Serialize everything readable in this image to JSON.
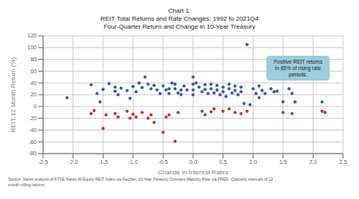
{
  "chart_data": {
    "type": "scatter",
    "title": "Chart 1:\nREIT Total Returns and Rate Changes: 1992 to 2021Q4\nFour-Quarter Return and Change in 10-Year Treasury",
    "xlabel": "Change in Interest Rates",
    "ylabel": "REIT 12 Month Return (%)",
    "source": "Source: Nareit analysis of FTSE Nareit All Equity REIT Index via FactSet. 10 Year Treasury Constant Maturity Rate via FRED. Quarterly intervals of 12\nmonth rolling returns.",
    "annotations": [
      {
        "text": "Positive REIT returns\nin 85% of rising rate\nperiods.",
        "x": 1.75,
        "y": 65,
        "color": "#93C6D6"
      }
    ],
    "xlim": [
      -2.5,
      2.5
    ],
    "ylim": [
      -80,
      120
    ],
    "xticks": [
      -2.5,
      {
        "value": -2.0,
        "label": "-2.0"
      },
      -1.5,
      {
        "value": -1.0,
        "label": "-1.0"
      },
      -0.5,
      {
        "value": 0.0,
        "label": "0.0"
      },
      0.5,
      {
        "value": 1.0,
        "label": "1.0"
      },
      1.5,
      {
        "value": 2.0,
        "label": "2.0"
      },
      2.5
    ],
    "yticks": [
      -80,
      -60,
      -40,
      -20,
      0,
      20,
      40,
      60,
      80,
      100,
      120
    ],
    "grid": true,
    "series": [
      {
        "color": "#3A5BA0",
        "x": [
          -2.1,
          -1.7,
          -1.6,
          -1.55,
          -1.5,
          -1.4,
          -1.3,
          -1.3,
          -1.25,
          -1.2,
          -1.1,
          -1.05,
          -1.0,
          -0.95,
          -0.9,
          -0.85,
          -0.8,
          -0.75,
          -0.7,
          -0.65,
          -0.6,
          -0.55,
          -0.5,
          -0.45,
          -0.4,
          -0.4,
          -0.35,
          -0.3,
          -0.3,
          -0.25,
          -0.2,
          -0.2,
          -0.15,
          -0.1,
          0.0,
          0.0,
          0.0,
          0.0,
          0.05,
          0.1,
          0.15,
          0.2,
          0.2,
          0.25,
          0.3,
          0.3,
          0.35,
          0.4,
          0.4,
          0.45,
          0.5,
          0.5,
          0.55,
          0.6,
          0.6,
          0.65,
          0.7,
          0.7,
          0.75,
          0.8,
          0.8,
          0.85,
          0.9,
          0.95,
          1.0,
          1.05,
          1.1,
          1.1,
          1.15,
          1.2,
          1.3,
          1.35,
          1.4,
          1.5,
          1.6,
          1.65,
          1.7,
          2.15
        ],
        "values": [
          15,
          37,
          22,
          8,
          29,
          39,
          33,
          26,
          20,
          31,
          27,
          14,
          34,
          25,
          40,
          32,
          50,
          38,
          30,
          36,
          28,
          22,
          35,
          28,
          22,
          30,
          40,
          38,
          30,
          23,
          28,
          20,
          35,
          28,
          50,
          38,
          28,
          20,
          40,
          33,
          25,
          37,
          29,
          22,
          38,
          30,
          23,
          36,
          28,
          20,
          33,
          25,
          17,
          38,
          30,
          23,
          35,
          27,
          20,
          33,
          25,
          5,
          105,
          3,
          30,
          22,
          15,
          35,
          27,
          22,
          30,
          25,
          26,
          8,
          30,
          22,
          8,
          8
        ]
      },
      {
        "color": "#C0392B",
        "x": [
          -1.7,
          -1.65,
          -1.5,
          -1.45,
          -1.3,
          -1.25,
          -1.1,
          -1.05,
          -1.0,
          -0.95,
          -0.85,
          -0.75,
          -0.7,
          -0.65,
          -0.5,
          -0.45,
          -0.4,
          -0.3,
          -0.25,
          0.15,
          0.2,
          0.3,
          0.35,
          0.5,
          0.6,
          0.7,
          0.8,
          0.9,
          1.5,
          1.65,
          2.15,
          2.2
        ],
        "values": [
          -12,
          -7,
          -37,
          -14,
          -12,
          -18,
          -8,
          -20,
          -13,
          -18,
          -10,
          -20,
          -14,
          -27,
          -44,
          -18,
          -14,
          -59,
          -10,
          -8,
          -14,
          -9,
          -4,
          -8,
          -4,
          -10,
          -12,
          -8,
          -10,
          -12,
          -8,
          -10
        ]
      }
    ]
  }
}
